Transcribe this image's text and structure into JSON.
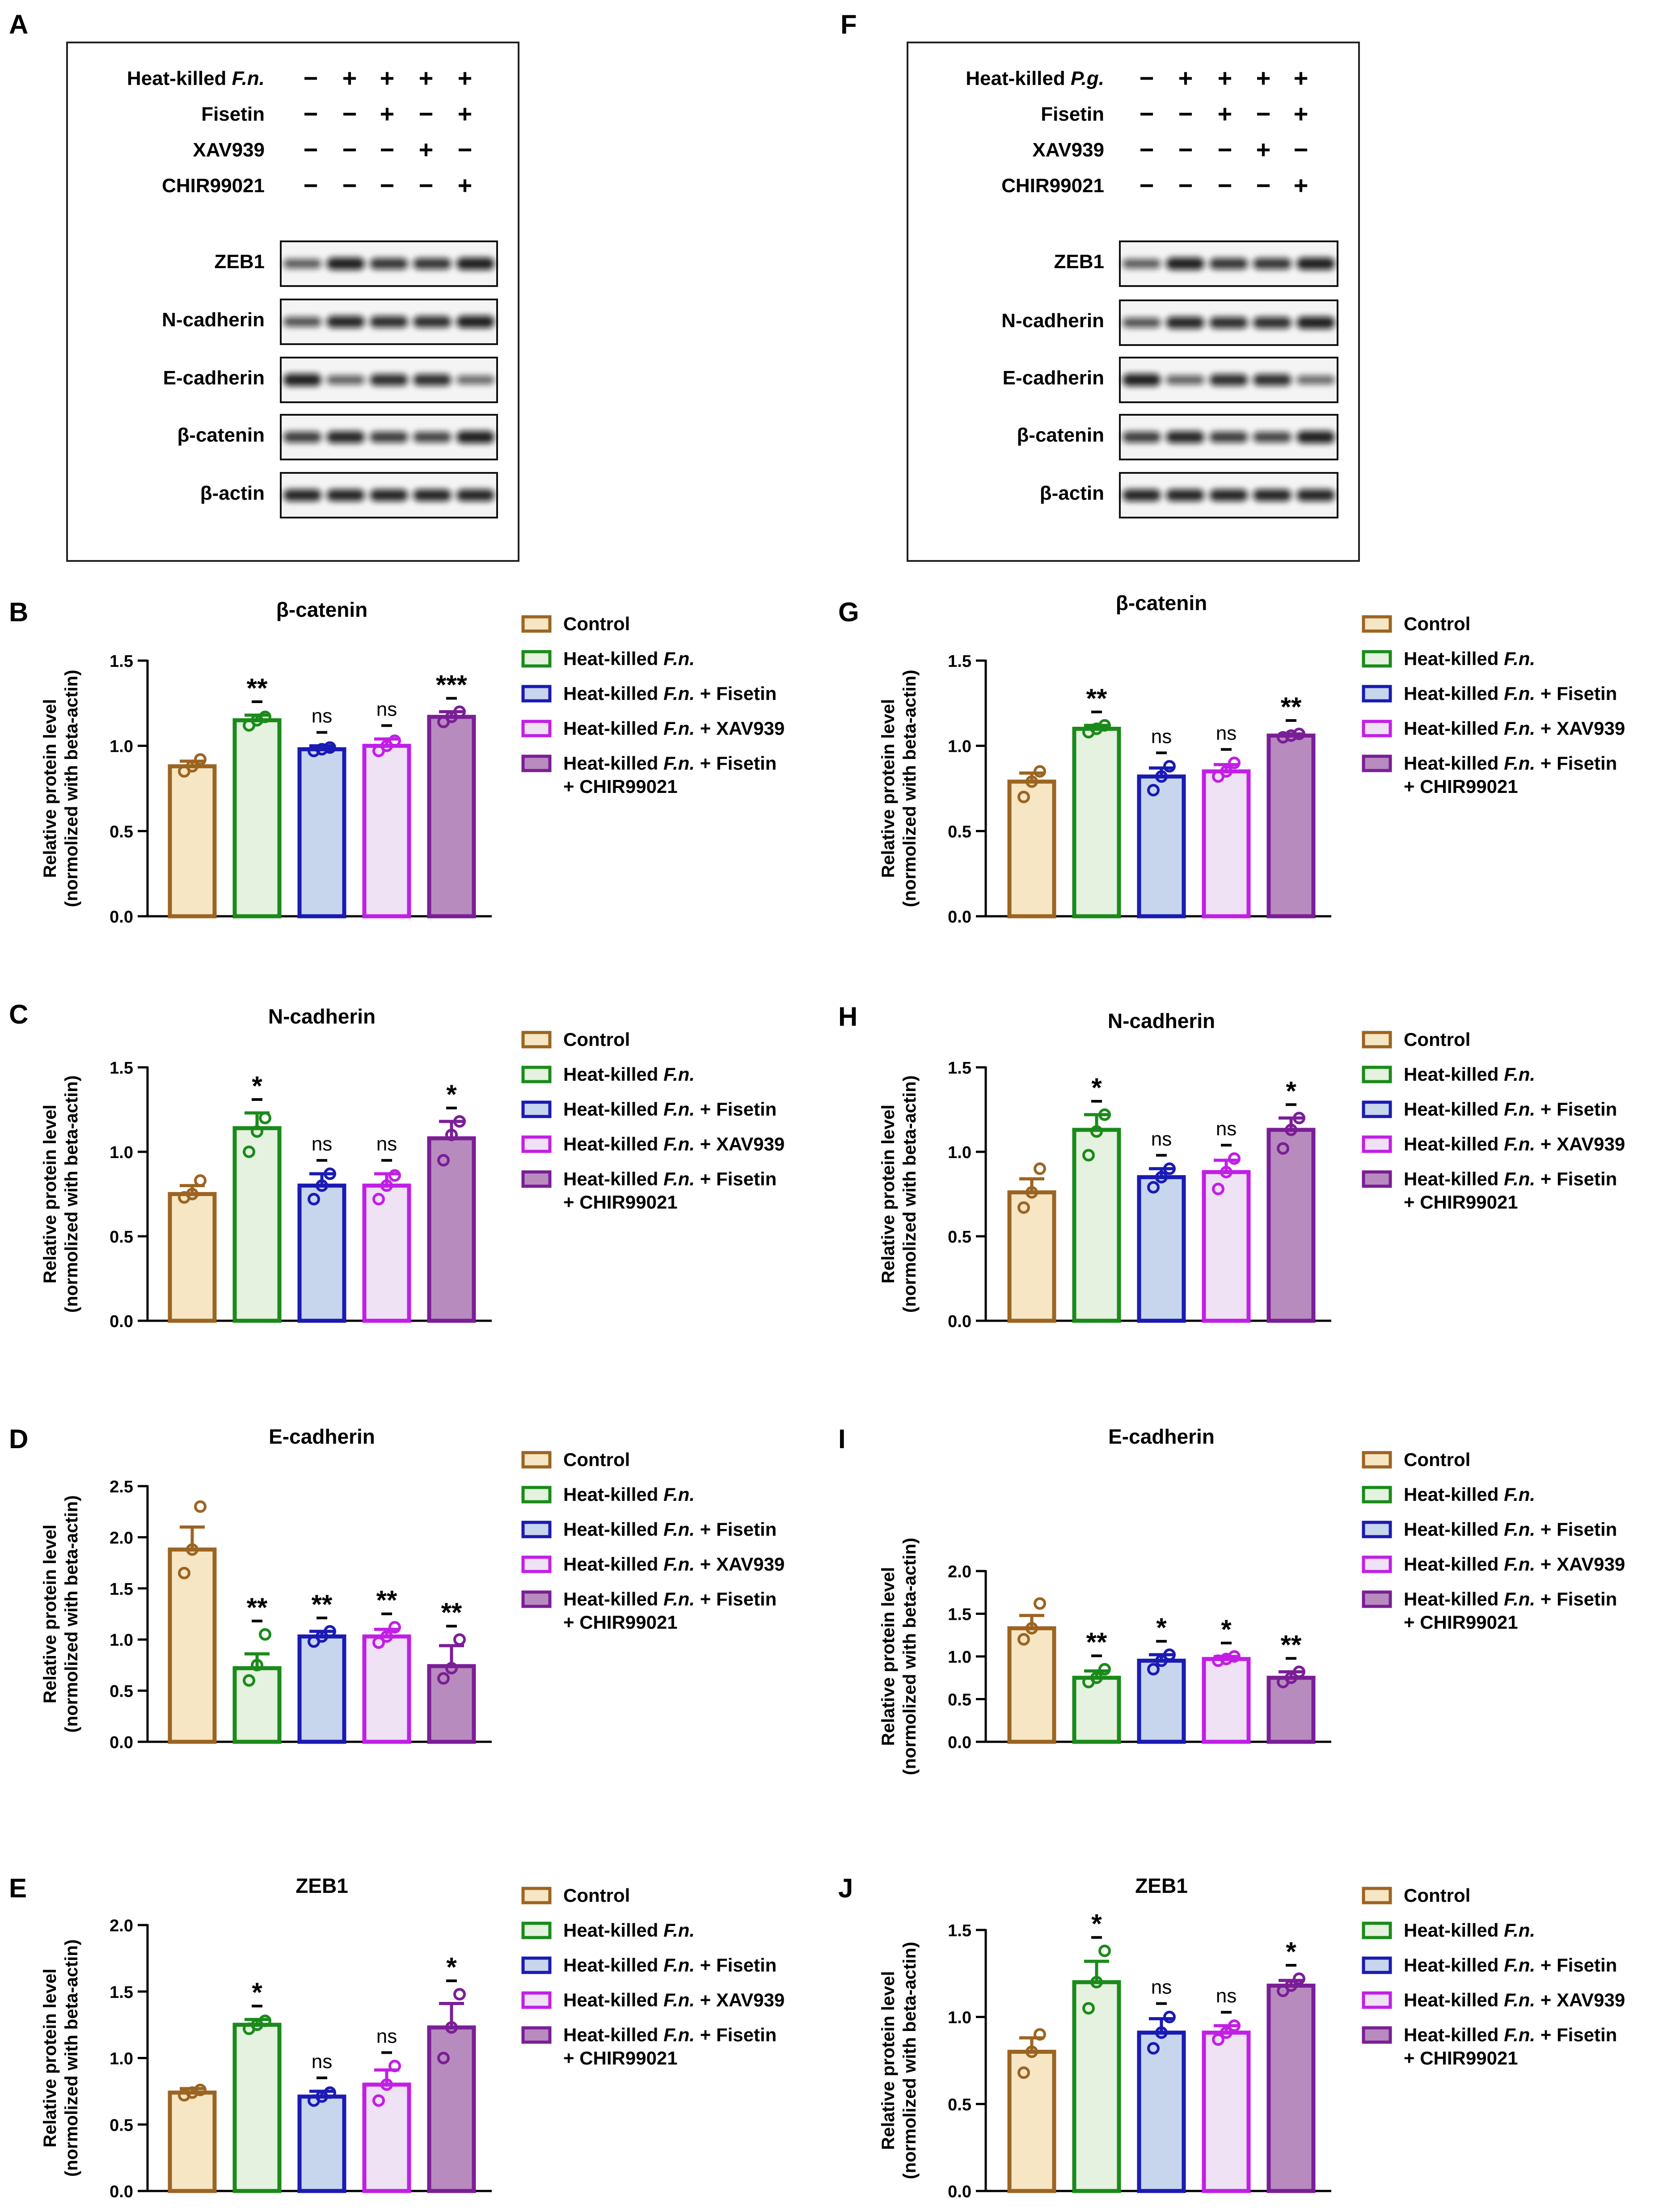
{
  "figure": {
    "description": "Western blot and relative protein level quantification"
  },
  "labels": {
    "A": "A",
    "F": "F"
  },
  "blots": [
    {
      "panel": "A",
      "treatments": [
        {
          "name": "Heat-killed ",
          "italic": "F.n.",
          "signs": [
            "−",
            "+",
            "+",
            "+",
            "+"
          ]
        },
        {
          "name": "Fisetin",
          "italic": "",
          "signs": [
            "−",
            "−",
            "+",
            "−",
            "+"
          ]
        },
        {
          "name": "XAV939",
          "italic": "",
          "signs": [
            "−",
            "−",
            "−",
            "+",
            "−"
          ]
        },
        {
          "name": "CHIR99021",
          "italic": "",
          "signs": [
            "−",
            "−",
            "−",
            "−",
            "+"
          ]
        }
      ],
      "proteins": [
        "ZEB1",
        "N-cadherin",
        "E-cadherin",
        "β-catenin",
        "β-actin"
      ]
    },
    {
      "panel": "F",
      "treatments": [
        {
          "name": "Heat-killed ",
          "italic": "P.g.",
          "signs": [
            "−",
            "+",
            "+",
            "+",
            "+"
          ]
        },
        {
          "name": "Fisetin",
          "italic": "",
          "signs": [
            "−",
            "−",
            "+",
            "−",
            "+"
          ]
        },
        {
          "name": "XAV939",
          "italic": "",
          "signs": [
            "−",
            "−",
            "−",
            "+",
            "−"
          ]
        },
        {
          "name": "CHIR99021",
          "italic": "",
          "signs": [
            "−",
            "−",
            "−",
            "−",
            "+"
          ]
        }
      ],
      "proteins": [
        "ZEB1",
        "N-cadherin",
        "E-cadherin",
        "β-catenin",
        "β-actin"
      ]
    }
  ],
  "legend": [
    {
      "text": "Control",
      "line2": ""
    },
    {
      "text": "Heat-killed ",
      "italic": "F.n.",
      "suffix": "",
      "line2": ""
    },
    {
      "text": "Heat-killed ",
      "italic": "F.n.",
      "suffix": " + Fisetin",
      "line2": ""
    },
    {
      "text": "Heat-killed ",
      "italic": "F.n.",
      "suffix": " + XAV939",
      "line2": ""
    },
    {
      "text": "Heat-killed ",
      "italic": "F.n.",
      "suffix": " + Fisetin",
      "line2": "+ CHIR99021"
    }
  ],
  "group_colors": {
    "stroke": [
      "#9c6422",
      "#1a8a1a",
      "#1a1ab4",
      "#c21ee6",
      "#7a1e96"
    ],
    "fill": [
      "#f6e6c3",
      "#e4f2df",
      "#c7d6ec",
      "#eee2f4",
      "#b88bbe"
    ]
  },
  "ylabel": [
    "Relative protein level",
    "(normolized with beta-actin)"
  ],
  "chart_data": [
    {
      "panel": "B",
      "type": "bar",
      "title": "β-catenin",
      "ylim": [
        0,
        1.5
      ],
      "ticks": [
        "0.0",
        "0.5",
        "1.0",
        "1.5"
      ],
      "categories": [
        "Control",
        "Heat-killed F.n.",
        "Heat-killed F.n. + Fisetin",
        "Heat-killed F.n. + XAV939",
        "Heat-killed F.n. + Fisetin + CHIR99021"
      ],
      "values": [
        0.88,
        1.15,
        0.98,
        1.0,
        1.17
      ],
      "errors": [
        0.03,
        0.03,
        0.02,
        0.04,
        0.03
      ],
      "points": [
        [
          0.85,
          0.88,
          0.92
        ],
        [
          1.12,
          1.15,
          1.17
        ],
        [
          0.97,
          0.98,
          0.99
        ],
        [
          0.97,
          1.0,
          1.03
        ],
        [
          1.14,
          1.17,
          1.2
        ]
      ],
      "sig": [
        "",
        "**",
        "ns",
        "ns",
        "***"
      ]
    },
    {
      "panel": "C",
      "type": "bar",
      "title": "N-cadherin",
      "ylim": [
        0,
        1.5
      ],
      "ticks": [
        "0.0",
        "0.5",
        "1.0",
        "1.5"
      ],
      "categories": [
        "Control",
        "Heat-killed F.n.",
        "Heat-killed F.n. + Fisetin",
        "Heat-killed F.n. + XAV939",
        "Heat-killed F.n. + Fisetin + CHIR99021"
      ],
      "values": [
        0.75,
        1.14,
        0.8,
        0.8,
        1.08
      ],
      "errors": [
        0.05,
        0.09,
        0.07,
        0.07,
        0.1
      ],
      "points": [
        [
          0.73,
          0.75,
          0.83
        ],
        [
          1.0,
          1.12,
          1.2
        ],
        [
          0.72,
          0.8,
          0.87
        ],
        [
          0.72,
          0.8,
          0.86
        ],
        [
          0.95,
          1.1,
          1.18
        ]
      ],
      "sig": [
        "",
        "*",
        "ns",
        "ns",
        "*"
      ]
    },
    {
      "panel": "D",
      "type": "bar",
      "title": "E-cadherin",
      "ylim": [
        0,
        2.5
      ],
      "ticks": [
        "0.0",
        "0.5",
        "1.0",
        "1.5",
        "2.0",
        "2.5"
      ],
      "categories": [
        "Control",
        "Heat-killed F.n.",
        "Heat-killed F.n. + Fisetin",
        "Heat-killed F.n. + XAV939",
        "Heat-killed F.n. + Fisetin + CHIR99021"
      ],
      "values": [
        1.88,
        0.72,
        1.03,
        1.03,
        0.74
      ],
      "errors": [
        0.22,
        0.14,
        0.05,
        0.07,
        0.2
      ],
      "points": [
        [
          1.65,
          1.88,
          2.3
        ],
        [
          0.6,
          0.75,
          1.05
        ],
        [
          0.98,
          1.03,
          1.08
        ],
        [
          0.97,
          1.03,
          1.12
        ],
        [
          0.62,
          0.72,
          1.0
        ]
      ],
      "sig": [
        "",
        "**",
        "**",
        "**",
        "**"
      ]
    },
    {
      "panel": "E",
      "type": "bar",
      "title": "ZEB1",
      "ylim": [
        0,
        2.0
      ],
      "ticks": [
        "0.0",
        "0.5",
        "1.0",
        "1.5",
        "2.0"
      ],
      "categories": [
        "Control",
        "Heat-killed F.n.",
        "Heat-killed F.n. + Fisetin",
        "Heat-killed F.n. + XAV939",
        "Heat-killed F.n. + Fisetin + CHIR99021"
      ],
      "values": [
        0.74,
        1.25,
        0.71,
        0.8,
        1.23
      ],
      "errors": [
        0.03,
        0.04,
        0.04,
        0.11,
        0.18
      ],
      "points": [
        [
          0.72,
          0.74,
          0.76
        ],
        [
          1.22,
          1.25,
          1.28
        ],
        [
          0.68,
          0.71,
          0.74
        ],
        [
          0.68,
          0.8,
          0.94
        ],
        [
          1.0,
          1.23,
          1.48
        ]
      ],
      "sig": [
        "",
        "*",
        "ns",
        "ns",
        "*"
      ]
    },
    {
      "panel": "G",
      "type": "bar",
      "title": "β-catenin",
      "ylim": [
        0,
        1.5
      ],
      "ticks": [
        "0.0",
        "0.5",
        "1.0",
        "1.5"
      ],
      "categories": [
        "Control",
        "Heat-killed F.n.",
        "Heat-killed F.n. + Fisetin",
        "Heat-killed F.n. + XAV939",
        "Heat-killed F.n. + Fisetin + CHIR99021"
      ],
      "values": [
        0.79,
        1.1,
        0.82,
        0.85,
        1.06
      ],
      "errors": [
        0.05,
        0.02,
        0.05,
        0.04,
        0.01
      ],
      "points": [
        [
          0.7,
          0.79,
          0.85
        ],
        [
          1.08,
          1.1,
          1.12
        ],
        [
          0.74,
          0.82,
          0.88
        ],
        [
          0.82,
          0.85,
          0.9
        ],
        [
          1.05,
          1.06,
          1.07
        ]
      ],
      "sig": [
        "",
        "**",
        "ns",
        "ns",
        "**"
      ]
    },
    {
      "panel": "H",
      "type": "bar",
      "title": "N-cadherin",
      "ylim": [
        0,
        1.5
      ],
      "ticks": [
        "0.0",
        "0.5",
        "1.0",
        "1.5"
      ],
      "categories": [
        "Control",
        "Heat-killed F.n.",
        "Heat-killed F.n. + Fisetin",
        "Heat-killed F.n. + XAV939",
        "Heat-killed F.n. + Fisetin + CHIR99021"
      ],
      "values": [
        0.76,
        1.13,
        0.85,
        0.88,
        1.13
      ],
      "errors": [
        0.08,
        0.09,
        0.05,
        0.07,
        0.07
      ],
      "points": [
        [
          0.67,
          0.76,
          0.9
        ],
        [
          0.98,
          1.12,
          1.22
        ],
        [
          0.79,
          0.85,
          0.9
        ],
        [
          0.78,
          0.88,
          0.96
        ],
        [
          1.02,
          1.13,
          1.2
        ]
      ],
      "sig": [
        "",
        "*",
        "ns",
        "ns",
        "*"
      ]
    },
    {
      "panel": "I",
      "type": "bar",
      "title": "E-cadherin",
      "ylim": [
        0,
        2.0
      ],
      "ticks": [
        "0.0",
        "0.5",
        "1.0",
        "1.5",
        "2.0"
      ],
      "categories": [
        "Control",
        "Heat-killed F.n.",
        "Heat-killed F.n. + Fisetin",
        "Heat-killed F.n. + XAV939",
        "Heat-killed F.n. + Fisetin + CHIR99021"
      ],
      "values": [
        1.33,
        0.75,
        0.95,
        0.97,
        0.75
      ],
      "errors": [
        0.15,
        0.08,
        0.07,
        0.03,
        0.07
      ],
      "points": [
        [
          1.2,
          1.33,
          1.62
        ],
        [
          0.7,
          0.75,
          0.85
        ],
        [
          0.85,
          0.95,
          1.02
        ],
        [
          0.95,
          0.97,
          1.0
        ],
        [
          0.7,
          0.75,
          0.82
        ]
      ],
      "sig": [
        "",
        "**",
        "*",
        "*",
        "**"
      ]
    },
    {
      "panel": "J",
      "type": "bar",
      "title": "ZEB1",
      "ylim": [
        0,
        1.5
      ],
      "ticks": [
        "0.0",
        "0.5",
        "1.0",
        "1.5"
      ],
      "categories": [
        "Control",
        "Heat-killed F.n.",
        "Heat-killed F.n. + Fisetin",
        "Heat-killed F.n. + XAV939",
        "Heat-killed F.n. + Fisetin + CHIR99021"
      ],
      "values": [
        0.8,
        1.2,
        0.91,
        0.91,
        1.18
      ],
      "errors": [
        0.08,
        0.12,
        0.08,
        0.04,
        0.03
      ],
      "points": [
        [
          0.68,
          0.8,
          0.9
        ],
        [
          1.05,
          1.2,
          1.38
        ],
        [
          0.82,
          0.91,
          1.0
        ],
        [
          0.87,
          0.91,
          0.95
        ],
        [
          1.15,
          1.18,
          1.22
        ]
      ],
      "sig": [
        "",
        "*",
        "ns",
        "ns",
        "*"
      ]
    }
  ]
}
